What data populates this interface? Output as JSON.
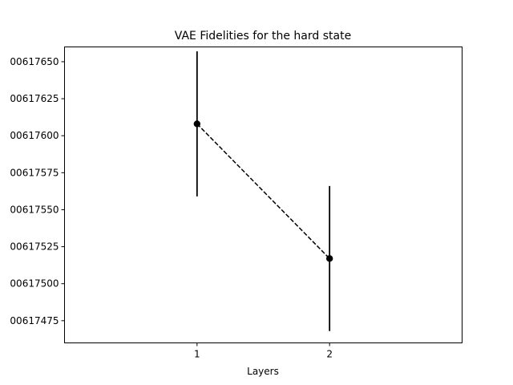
{
  "chart_data": {
    "type": "line",
    "title": "VAE Fidelities for the hard state",
    "xlabel": "Layers",
    "ylabel": "",
    "x_ticks": [
      1,
      2
    ],
    "x_tick_labels": [
      "1",
      "2"
    ],
    "xlim": [
      0,
      3
    ],
    "y_ticks": [
      0.00617475,
      0.006175,
      0.00617525,
      0.0061755,
      0.00617575,
      0.006176,
      0.00617625,
      0.0061765
    ],
    "y_tick_labels": [
      "00617475",
      "00617500",
      "00617525",
      "00617550",
      "00617575",
      "00617600",
      "00617625",
      "00617650"
    ],
    "ylim": [
      0.0061746,
      0.0061766
    ],
    "grid": false,
    "line_style": "dashed",
    "line_color": "#000000",
    "marker_color": "#000000",
    "series": [
      {
        "x": [
          1,
          2
        ],
        "y": [
          0.00617608,
          0.00617517
        ],
        "yerr": [
          4.9e-07,
          4.9e-07
        ]
      }
    ]
  }
}
